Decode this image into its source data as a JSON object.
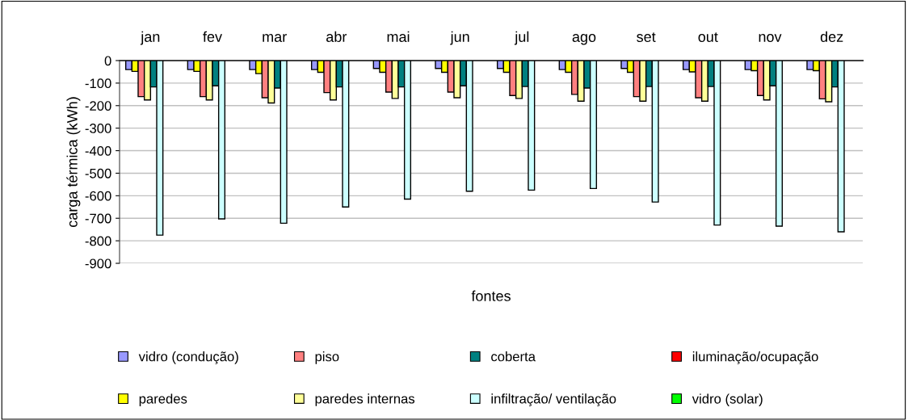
{
  "chart_data": {
    "type": "bar",
    "xlabel": "fontes",
    "ylabel": "carga térmica (kWh)",
    "categories": [
      "jan",
      "fev",
      "mar",
      "abr",
      "mai",
      "jun",
      "jul",
      "ago",
      "set",
      "out",
      "nov",
      "dez"
    ],
    "series": [
      {
        "name": "vidro (condução)",
        "color": "#9999ff",
        "values": [
          -40,
          -40,
          -40,
          -40,
          -35,
          -35,
          -35,
          -40,
          -35,
          -40,
          -40,
          -40
        ]
      },
      {
        "name": "paredes",
        "color": "#ffff00",
        "values": [
          -48,
          -48,
          -58,
          -52,
          -52,
          -52,
          -52,
          -52,
          -52,
          -50,
          -45,
          -45
        ]
      },
      {
        "name": "piso",
        "color": "#ff8080",
        "values": [
          -160,
          -160,
          -165,
          -142,
          -140,
          -140,
          -155,
          -150,
          -160,
          -165,
          -155,
          -170
        ]
      },
      {
        "name": "paredes internas",
        "color": "#ffff99",
        "values": [
          -175,
          -175,
          -188,
          -175,
          -168,
          -165,
          -168,
          -180,
          -180,
          -180,
          -175,
          -183
        ]
      },
      {
        "name": "coberta",
        "color": "#008080",
        "values": [
          -117,
          -112,
          -122,
          -117,
          -117,
          -112,
          -115,
          -122,
          -115,
          -115,
          -112,
          -117
        ]
      },
      {
        "name": "infiltração/ ventilação",
        "color": "#ccffff",
        "values": [
          -775,
          -703,
          -722,
          -650,
          -615,
          -580,
          -575,
          -568,
          -628,
          -730,
          -735,
          -760
        ]
      },
      {
        "name": "iluminação/ocupação",
        "color": "#ff0000",
        "values": [
          null,
          null,
          null,
          null,
          null,
          null,
          null,
          null,
          null,
          null,
          null,
          null
        ]
      },
      {
        "name": "vidro (solar)",
        "color": "#00ff00",
        "values": [
          null,
          null,
          null,
          null,
          null,
          null,
          null,
          null,
          null,
          null,
          null,
          null
        ]
      }
    ],
    "ylim": [
      -900,
      0
    ],
    "yticks": [
      -900,
      -800,
      -700,
      -600,
      -500,
      -400,
      -300,
      -200,
      -100,
      0
    ],
    "grid": "y",
    "legend": "bottom"
  }
}
